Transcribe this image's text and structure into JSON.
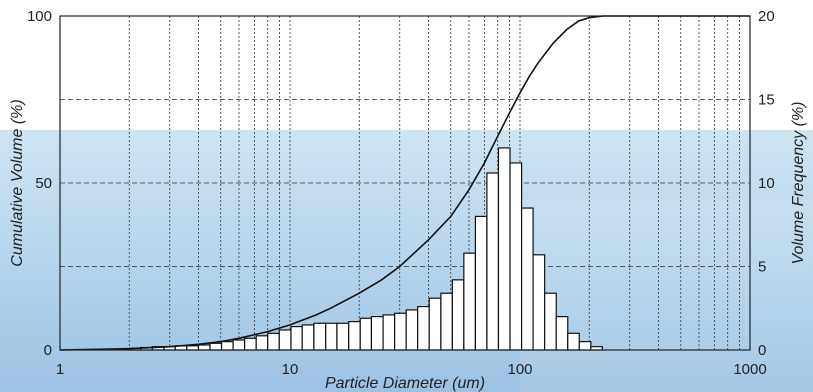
{
  "chart_data": {
    "type": "bar",
    "title": "",
    "xlabel": "Particle Diameter (um)",
    "ylabel": "Cumulative Volume (%)",
    "y2label": "Volume Frequency (%)",
    "xscale": "log",
    "xlim": [
      1,
      1000
    ],
    "ylim": [
      0,
      100
    ],
    "y2lim": [
      0,
      20
    ],
    "grid": true,
    "x_ticks": [
      {
        "value": 1,
        "label": "1"
      },
      {
        "value": 10,
        "label": "10"
      },
      {
        "value": 100,
        "label": "100"
      },
      {
        "value": 1000,
        "label": "1000"
      }
    ],
    "y_ticks": [
      {
        "value": 0,
        "label": "0"
      },
      {
        "value": 50,
        "label": "50"
      },
      {
        "value": 100,
        "label": "100"
      }
    ],
    "y2_ticks": [
      {
        "value": 0,
        "label": "0"
      },
      {
        "value": 5,
        "label": "5"
      },
      {
        "value": 10,
        "label": "10"
      },
      {
        "value": 15,
        "label": "15"
      },
      {
        "value": 20,
        "label": "20"
      }
    ],
    "series": [
      {
        "type": "bar",
        "axis": "right",
        "bin_left": [
          2.0,
          2.24,
          2.52,
          2.83,
          3.17,
          3.56,
          4.0,
          4.49,
          5.04,
          5.66,
          6.35,
          7.13,
          8.0,
          8.98,
          10.1,
          11.3,
          12.7,
          14.3,
          16.0,
          18.0,
          20.2,
          22.6,
          25.4,
          28.5,
          32.0,
          35.9,
          40.3,
          45.3,
          50.8,
          57.0,
          64.0,
          71.8,
          80.6,
          90.5,
          101.6,
          114.0,
          128.0,
          143.7,
          161.3,
          181.0,
          203.2
        ],
        "bin_right": [
          2.24,
          2.52,
          2.83,
          3.17,
          3.56,
          4.0,
          4.49,
          5.04,
          5.66,
          6.35,
          7.13,
          8.0,
          8.98,
          10.1,
          11.3,
          12.7,
          14.3,
          16.0,
          18.0,
          20.2,
          22.6,
          25.4,
          28.5,
          32.0,
          35.9,
          40.3,
          45.3,
          50.8,
          57.0,
          64.0,
          71.8,
          80.6,
          90.5,
          101.6,
          114.0,
          128.0,
          143.7,
          161.3,
          181.0,
          203.2,
          228.0
        ],
        "values": [
          0.1,
          0.15,
          0.2,
          0.2,
          0.25,
          0.25,
          0.3,
          0.4,
          0.5,
          0.6,
          0.7,
          0.85,
          1.0,
          1.2,
          1.4,
          1.5,
          1.6,
          1.6,
          1.6,
          1.7,
          1.9,
          2.0,
          2.1,
          2.2,
          2.4,
          2.6,
          3.1,
          3.4,
          4.2,
          5.8,
          8.0,
          10.6,
          12.1,
          11.2,
          8.5,
          5.7,
          3.4,
          2.0,
          1.0,
          0.5,
          0.2
        ]
      },
      {
        "type": "line",
        "axis": "left",
        "x": [
          1,
          2,
          3,
          4,
          5,
          6,
          8,
          10,
          13,
          15,
          20,
          25,
          30,
          40,
          50,
          60,
          70,
          80,
          90,
          100,
          110,
          120,
          140,
          160,
          180,
          200,
          230,
          1000
        ],
        "values": [
          0,
          0.4,
          1,
          1.7,
          2.5,
          3.5,
          5.5,
          7.5,
          10.5,
          12.5,
          17,
          21,
          25,
          33,
          40,
          48,
          56,
          64,
          71,
          77,
          82,
          86,
          92,
          96,
          98.5,
          99.5,
          100,
          100
        ]
      }
    ]
  }
}
